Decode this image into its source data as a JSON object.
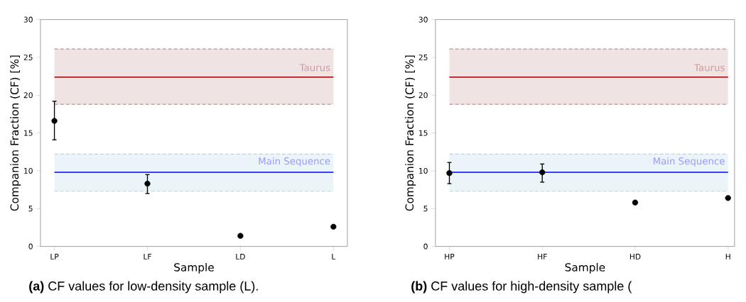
{
  "chart_data": [
    {
      "type": "scatter",
      "xlabel": "Sample",
      "ylabel": "Companion Fraction (CF) [%]",
      "categories": [
        "LP",
        "LF",
        "LD",
        "L"
      ],
      "series": [
        {
          "color": "#000000",
          "values": [
            16.6,
            8.3,
            1.4,
            2.6
          ],
          "errors": [
            [
              14.1,
              19.2
            ],
            [
              7.0,
              9.5
            ],
            null,
            null
          ]
        }
      ],
      "ylim": [
        0,
        30
      ],
      "yticks": [
        0,
        5,
        10,
        15,
        20,
        25,
        30
      ],
      "marker": "circle",
      "ref_lines": [
        {
          "axis": "y",
          "value": 22.4,
          "label": "Taurus",
          "color": "#990000",
          "line_style": "solid"
        },
        {
          "axis": "y",
          "value": 9.8,
          "label": "Main Sequence",
          "color": "#0000ff",
          "line_style": "solid"
        },
        {
          "axis": "y",
          "value": 18.8,
          "color": "#c49090",
          "line_style": "dashed"
        },
        {
          "axis": "y",
          "value": 26.1,
          "color": "#c49090",
          "line_style": "dashed"
        },
        {
          "axis": "y",
          "value": 7.3,
          "color": "#add8e6",
          "line_style": "dashed"
        },
        {
          "axis": "y",
          "value": 12.2,
          "color": "#add8e6",
          "line_style": "dashed"
        }
      ],
      "bands": [
        {
          "axis": "y",
          "from": 18.8,
          "to": 26.1,
          "color": "#f0e3e3"
        },
        {
          "axis": "y",
          "from": 7.3,
          "to": 12.2,
          "color": "#ebf5f9"
        }
      ],
      "annotations": [
        "**(a)** CF values for low-density sample (L)."
      ]
    },
    {
      "type": "scatter",
      "xlabel": "Sample",
      "ylabel": "Companion Fraction (CF) [%]",
      "categories": [
        "HP",
        "HF",
        "HD",
        "H"
      ],
      "series": [
        {
          "color": "#000000",
          "values": [
            9.7,
            9.8,
            5.8,
            6.4
          ],
          "errors": [
            [
              8.3,
              11.1
            ],
            [
              8.5,
              10.9
            ],
            null,
            null
          ]
        }
      ],
      "ylim": [
        0,
        30
      ],
      "yticks": [
        0,
        5,
        10,
        15,
        20,
        25,
        30
      ],
      "marker": "circle",
      "ref_lines": [
        {
          "axis": "y",
          "value": 22.4,
          "label": "Taurus",
          "color": "#990000",
          "line_style": "solid"
        },
        {
          "axis": "y",
          "value": 9.8,
          "label": "Main Sequence",
          "color": "#0000ff",
          "line_style": "solid"
        },
        {
          "axis": "y",
          "value": 18.8,
          "color": "#c49090",
          "line_style": "dashed"
        },
        {
          "axis": "y",
          "value": 26.1,
          "color": "#c49090",
          "line_style": "dashed"
        },
        {
          "axis": "y",
          "value": 7.3,
          "color": "#add8e6",
          "line_style": "dashed"
        },
        {
          "axis": "y",
          "value": 12.2,
          "color": "#add8e6",
          "line_style": "dashed"
        }
      ],
      "bands": [
        {
          "axis": "y",
          "from": 18.8,
          "to": 26.1,
          "color": "#f0e3e3"
        },
        {
          "axis": "y",
          "from": 7.3,
          "to": 12.2,
          "color": "#ebf5f9"
        }
      ],
      "annotations": [
        "**(b)** CF values for high-density sample ("
      ]
    }
  ]
}
